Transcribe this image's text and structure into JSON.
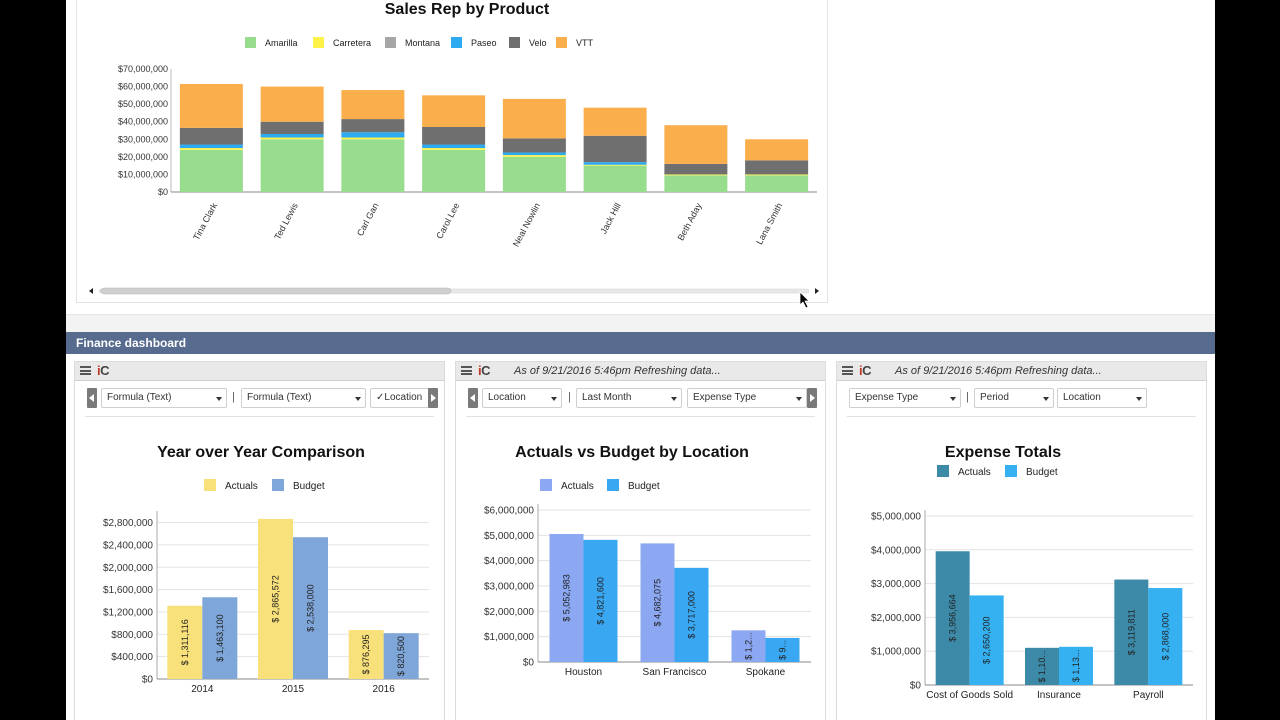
{
  "colors": {
    "amarilla": "#98dc8e",
    "carretera": "#fff34a",
    "montana": "#a6a6a6",
    "paseo": "#2eaaf0",
    "velo": "#6f6f6f",
    "vtt": "#fbae4c",
    "header_band": "#566b8e",
    "actuals_yellow": "#f8e07a",
    "budget_blue_grey": "#7ea6d8",
    "actuals_lavender": "#8ca8f2",
    "budget_sky": "#3aa7f2",
    "actuals_teal": "#3d8aa8",
    "budget_light": "#35b1f2"
  },
  "finance_header": {
    "title": "Finance dashboard"
  },
  "top_chart": {
    "chart_data": {
      "type": "bar",
      "stacked": true,
      "title": "Sales Rep by Product",
      "categories": [
        "Tina Clark",
        "Ted Lewis",
        "Carl Gan",
        "Carol Lee",
        "Neal Nowlin",
        "Jack Hill",
        "Beth Aday",
        "Lana Smith"
      ],
      "series": [
        {
          "name": "Amarilla",
          "values": [
            24000000,
            30000000,
            30000000,
            24000000,
            20000000,
            15000000,
            9500000,
            9500000
          ]
        },
        {
          "name": "Carretera",
          "values": [
            1000000,
            1000000,
            1000000,
            1000000,
            1000000,
            500000,
            500000,
            500000
          ]
        },
        {
          "name": "Montana",
          "values": [
            0,
            0,
            0,
            0,
            0,
            0,
            0,
            0
          ]
        },
        {
          "name": "Paseo",
          "values": [
            2000000,
            2000000,
            3000000,
            2000000,
            1500000,
            1500000,
            0,
            0
          ]
        },
        {
          "name": "Velo",
          "values": [
            9500000,
            7000000,
            7500000,
            10000000,
            8000000,
            15000000,
            6000000,
            8000000
          ]
        },
        {
          "name": "VTT",
          "values": [
            25000000,
            20000000,
            16500000,
            18000000,
            22500000,
            16000000,
            22000000,
            12000000
          ]
        }
      ],
      "yticks": [
        "$0",
        "$10,000,000",
        "$20,000,000",
        "$30,000,000",
        "$40,000,000",
        "$50,000,000",
        "$60,000,000",
        "$70,000,000"
      ],
      "ylim": [
        0,
        70000000
      ],
      "legend": "top"
    }
  },
  "panels": [
    {
      "status": "",
      "filters": [
        "Formula (Text)",
        "Formula (Text)",
        "✓Location"
      ],
      "chart_data": {
        "type": "bar",
        "title": "Year over Year Comparison",
        "categories": [
          "2014",
          "2015",
          "2016"
        ],
        "series": [
          {
            "name": "Actuals",
            "values": [
              1311116,
              2865572,
              876295
            ],
            "labels": [
              "$ 1,311,116",
              "$ 2,865,572",
              "$ 876,295"
            ]
          },
          {
            "name": "Budget",
            "values": [
              1463100,
              2538000,
              820500
            ],
            "labels": [
              "$ 1,463,100",
              "$ 2,538,000",
              "$ 820,500"
            ]
          }
        ],
        "yticks": [
          "$0",
          "$400,000",
          "$800,000",
          "$1,200,000",
          "$1,600,000",
          "$2,000,000",
          "$2,400,000",
          "$2,800,000"
        ],
        "ylim": [
          0,
          2900000
        ],
        "legend": "top"
      }
    },
    {
      "status": "As of 9/21/2016 5:46pm Refreshing data...",
      "filters": [
        "Location",
        "Last Month",
        "Expense Type"
      ],
      "chart_data": {
        "type": "bar",
        "title": "Actuals vs Budget by Location",
        "categories": [
          "Houston",
          "San Francisco",
          "Spokane"
        ],
        "series": [
          {
            "name": "Actuals",
            "values": [
              5052983,
              4682075,
              1250000
            ],
            "labels": [
              "$ 5,052,983",
              "$ 4,682,075",
              "$ 1,2..."
            ]
          },
          {
            "name": "Budget",
            "values": [
              4821600,
              3717000,
              950000
            ],
            "labels": [
              "$ 4,821,600",
              "$ 3,717,000",
              "$ 9..."
            ]
          }
        ],
        "yticks": [
          "$0",
          "$1,000,000",
          "$2,000,000",
          "$3,000,000",
          "$4,000,000",
          "$5,000,000",
          "$6,000,000"
        ],
        "ylim": [
          0,
          6000000
        ],
        "legend": "top"
      }
    },
    {
      "status": "As of 9/21/2016 5:46pm Refreshing data...",
      "filters": [
        "Expense Type",
        "Period",
        "Location"
      ],
      "chart_data": {
        "type": "bar",
        "title": "Expense Totals",
        "categories": [
          "Cost of Goods Sold",
          "Insurance",
          "Payroll"
        ],
        "series": [
          {
            "name": "Actuals",
            "values": [
              3956664,
              1100000,
              3119811
            ],
            "labels": [
              "$ 3,956,664",
              "$ 1,10...",
              "$ 3,119,811"
            ]
          },
          {
            "name": "Budget",
            "values": [
              2650200,
              1130000,
              2868000
            ],
            "labels": [
              "$ 2,650,200",
              "$ 1,13...",
              "$ 2,868,000"
            ]
          }
        ],
        "yticks": [
          "$0",
          "$1,000,000",
          "$2,000,000",
          "$3,000,000",
          "$4,000,000",
          "$5,000,000"
        ],
        "ylim": [
          0,
          5000000
        ],
        "legend": "top"
      }
    }
  ]
}
